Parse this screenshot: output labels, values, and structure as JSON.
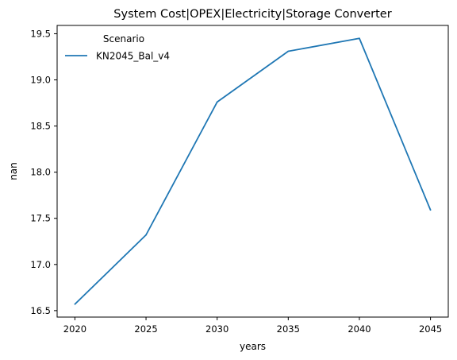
{
  "chart_data": {
    "type": "line",
    "title": "System Cost|OPEX|Electricity|Storage Converter",
    "xlabel": "years",
    "ylabel": "nan",
    "x": [
      2020,
      2025,
      2030,
      2035,
      2040,
      2045
    ],
    "xticks": [
      "2020",
      "2025",
      "2030",
      "2035",
      "2040",
      "2045"
    ],
    "xlim": [
      2018.75,
      2046.25
    ],
    "yticks": [
      "16.5",
      "17.0",
      "17.5",
      "18.0",
      "18.5",
      "19.0",
      "19.5"
    ],
    "ylim": [
      16.43,
      19.59
    ],
    "grid": false,
    "legend": {
      "title": "Scenario",
      "placement": "top-left"
    },
    "series": [
      {
        "name": "KN2045_Bal_v4",
        "color": "#1f77b4",
        "values": [
          16.57,
          17.32,
          18.76,
          19.31,
          19.45,
          17.59
        ]
      }
    ]
  }
}
